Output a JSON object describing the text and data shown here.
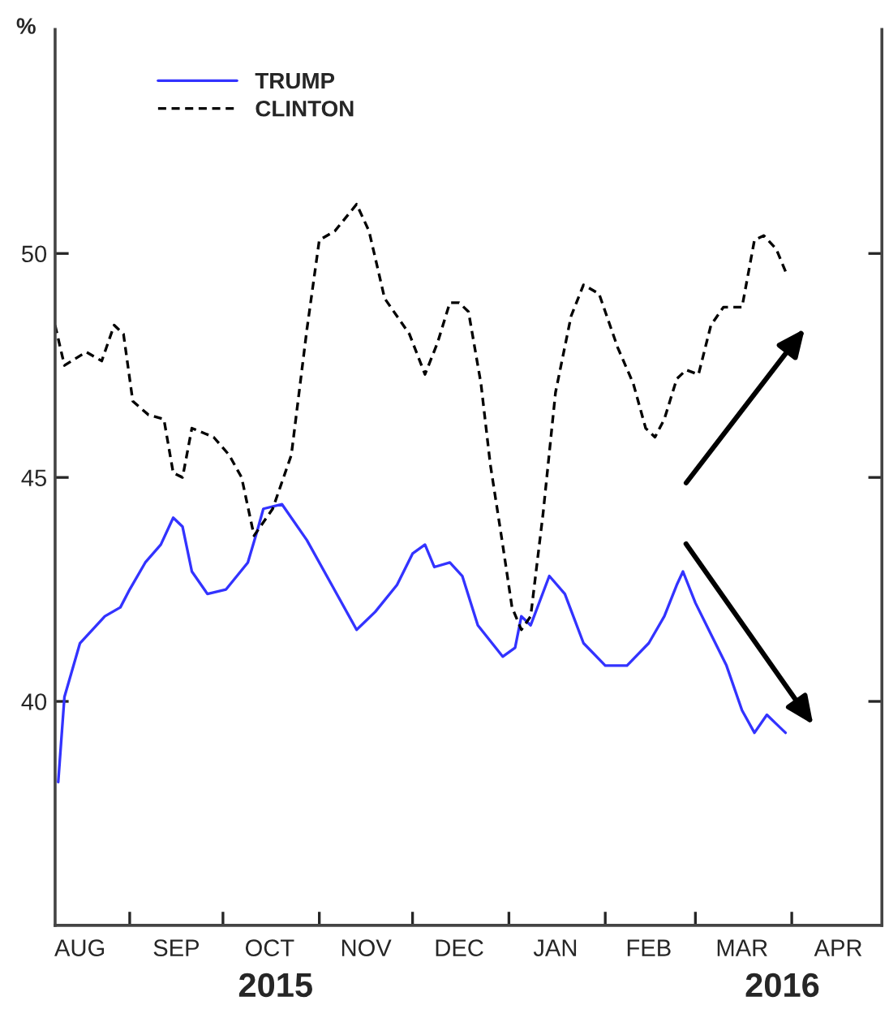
{
  "chart_data": {
    "type": "line",
    "ylabel": "%",
    "xlim": [
      "2015-08-08",
      "2016-04-30"
    ],
    "ylim": [
      35,
      55
    ],
    "yticks": [
      40,
      45,
      50
    ],
    "xticks": [
      {
        "value": "2015-08-16",
        "label": "AUG"
      },
      {
        "value": "2015-09-01",
        "label": null
      },
      {
        "value": "2015-09-16",
        "label": "SEP"
      },
      {
        "value": "2015-10-01",
        "label": null
      },
      {
        "value": "2015-10-16",
        "label": "OCT"
      },
      {
        "value": "2015-11-01",
        "label": null
      },
      {
        "value": "2015-11-16",
        "label": "NOV"
      },
      {
        "value": "2015-12-01",
        "label": null
      },
      {
        "value": "2015-12-16",
        "label": "DEC"
      },
      {
        "value": "2016-01-01",
        "label": null
      },
      {
        "value": "2016-01-16",
        "label": "JAN"
      },
      {
        "value": "2016-02-01",
        "label": null
      },
      {
        "value": "2016-02-15",
        "label": "FEB"
      },
      {
        "value": "2016-03-01",
        "label": null
      },
      {
        "value": "2016-03-16",
        "label": "MAR"
      },
      {
        "value": "2016-04-01",
        "label": null
      },
      {
        "value": "2016-04-16",
        "label": "APR"
      }
    ],
    "annotations": [
      "2015",
      "2016"
    ],
    "legend": "top left",
    "grid": false,
    "series": [
      {
        "name": "TRUMP",
        "color": "#3333ff",
        "line_style": "solid",
        "x": [
          "2015-08-09",
          "2015-08-11",
          "2015-08-16",
          "2015-08-24",
          "2015-08-29",
          "2015-09-01",
          "2015-09-06",
          "2015-09-11",
          "2015-09-15",
          "2015-09-18",
          "2015-09-21",
          "2015-09-26",
          "2015-10-02",
          "2015-10-09",
          "2015-10-12",
          "2015-10-14",
          "2015-10-20",
          "2015-10-28",
          "2015-11-05",
          "2015-11-13",
          "2015-11-19",
          "2015-11-26",
          "2015-12-01",
          "2015-12-05",
          "2015-12-08",
          "2015-12-13",
          "2015-12-17",
          "2015-12-22",
          "2015-12-30",
          "2016-01-03",
          "2016-01-05",
          "2016-01-08",
          "2016-01-14",
          "2016-01-19",
          "2016-01-25",
          "2016-02-01",
          "2016-02-08",
          "2016-02-15",
          "2016-02-20",
          "2016-02-24",
          "2016-02-26",
          "2016-03-01",
          "2016-03-06",
          "2016-03-11",
          "2016-03-16",
          "2016-03-20",
          "2016-03-24",
          "2016-03-27",
          "2016-03-30"
        ],
        "values": [
          38.2,
          40.1,
          41.3,
          41.9,
          42.1,
          42.5,
          43.1,
          43.5,
          44.1,
          43.9,
          42.9,
          42.4,
          42.5,
          43.1,
          43.8,
          44.3,
          44.4,
          43.6,
          42.6,
          41.6,
          42.0,
          42.6,
          43.3,
          43.5,
          43.0,
          43.1,
          42.8,
          41.7,
          41.0,
          41.2,
          41.9,
          41.7,
          42.8,
          42.4,
          41.3,
          40.8,
          40.8,
          41.3,
          41.9,
          42.6,
          42.9,
          42.2,
          41.5,
          40.8,
          39.8,
          39.3,
          39.7,
          39.5,
          39.3
        ]
      },
      {
        "name": "CLINTON",
        "color": "#000000",
        "line_style": "dashed",
        "x": [
          "2015-08-08",
          "2015-08-11",
          "2015-08-18",
          "2015-08-23",
          "2015-08-27",
          "2015-08-30",
          "2015-09-02",
          "2015-09-07",
          "2015-09-12",
          "2015-09-15",
          "2015-09-18",
          "2015-09-21",
          "2015-09-28",
          "2015-10-03",
          "2015-10-07",
          "2015-10-11",
          "2015-10-17",
          "2015-10-23",
          "2015-10-28",
          "2015-11-01",
          "2015-11-06",
          "2015-11-13",
          "2015-11-17",
          "2015-11-22",
          "2015-11-30",
          "2015-12-05",
          "2015-12-09",
          "2015-12-13",
          "2015-12-16",
          "2015-12-19",
          "2015-12-23",
          "2015-12-26",
          "2015-12-30",
          "2016-01-02",
          "2016-01-05",
          "2016-01-08",
          "2016-01-12",
          "2016-01-16",
          "2016-01-21",
          "2016-01-25",
          "2016-01-30",
          "2016-02-05",
          "2016-02-10",
          "2016-02-14",
          "2016-02-17",
          "2016-02-20",
          "2016-02-24",
          "2016-02-27",
          "2016-03-02",
          "2016-03-06",
          "2016-03-10",
          "2016-03-16",
          "2016-03-20",
          "2016-03-23",
          "2016-03-27",
          "2016-03-30"
        ],
        "values": [
          48.4,
          47.5,
          47.8,
          47.6,
          48.4,
          48.2,
          46.7,
          46.4,
          46.3,
          45.1,
          45.0,
          46.1,
          45.9,
          45.5,
          45.0,
          43.7,
          44.3,
          45.5,
          48.3,
          50.3,
          50.5,
          51.1,
          50.5,
          49.0,
          48.2,
          47.3,
          48.0,
          48.9,
          48.9,
          48.7,
          47.1,
          45.3,
          43.5,
          42.1,
          41.6,
          41.9,
          44.2,
          46.9,
          48.6,
          49.3,
          49.1,
          47.9,
          47.1,
          46.1,
          45.9,
          46.3,
          47.2,
          47.4,
          47.3,
          48.4,
          48.8,
          48.8,
          50.3,
          50.4,
          50.1,
          49.6
        ]
      }
    ]
  }
}
